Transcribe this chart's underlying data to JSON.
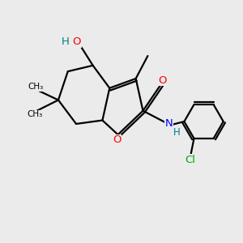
{
  "bg_color": "#ebebeb",
  "atom_colors": {
    "C": "#000000",
    "O_red": "#ff0000",
    "N": "#0000ff",
    "Cl": "#00aa00",
    "H_teal": "#008080"
  },
  "bond_color": "#000000",
  "bond_width": 1.6,
  "fig_size": [
    3.0,
    3.0
  ],
  "dpi": 100,
  "xlim": [
    0,
    10
  ],
  "ylim": [
    0,
    10
  ]
}
